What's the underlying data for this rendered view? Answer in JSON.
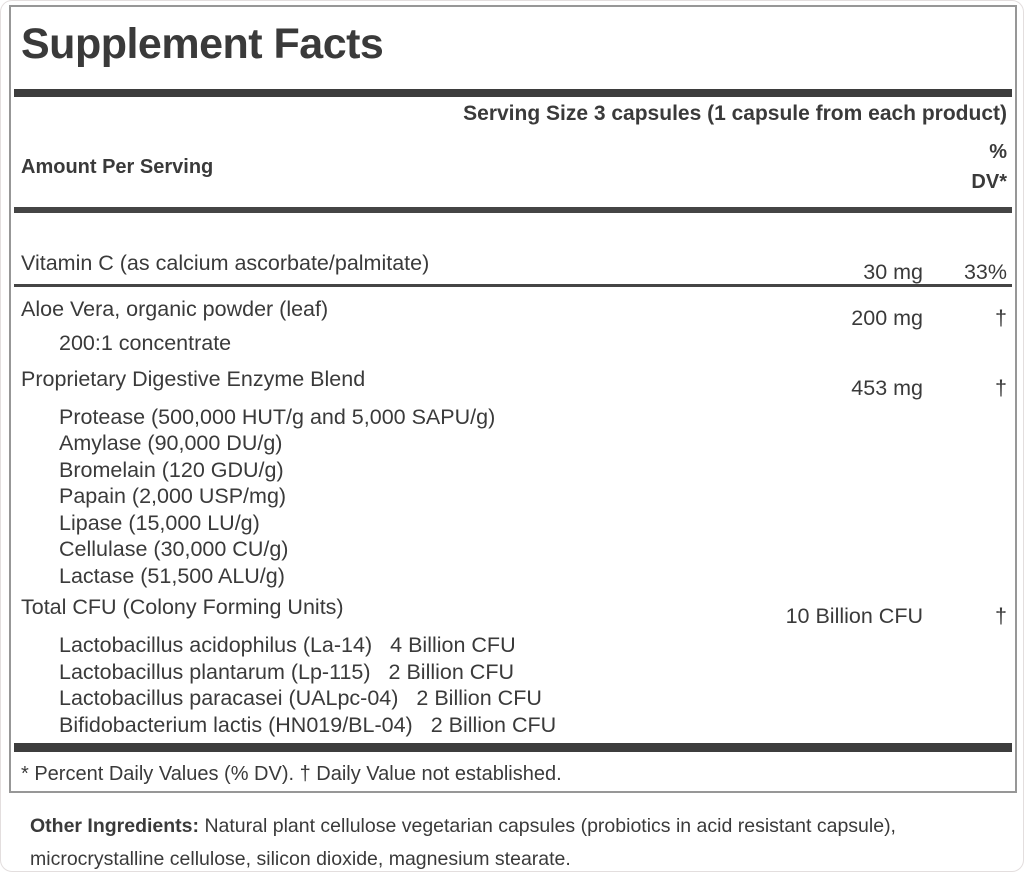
{
  "colors": {
    "text": "#3a3a3a",
    "bar": "#3d3d3d",
    "rule": "#454545",
    "border": "#979797"
  },
  "panel": {
    "title": "Supplement Facts",
    "serving_size": "Serving Size 3 capsules (1 capsule from each product)",
    "columns": {
      "amount_header": "Amount Per Serving",
      "dv_header_line1": "%",
      "dv_header_line2": "DV*"
    },
    "rows": [
      {
        "name": "Vitamin C (as calcium ascorbate/palmitate)",
        "amount": "30 mg",
        "dv": "33%"
      },
      {
        "name": "Aloe Vera, organic powder (leaf)",
        "amount": "200 mg",
        "dv": "†",
        "subitems": [
          "200:1 concentrate"
        ]
      },
      {
        "name": "Proprietary Digestive Enzyme Blend",
        "amount": "453 mg",
        "dv": "†",
        "subitems": [
          "Protease (500,000 HUT/g and 5,000 SAPU/g)",
          "Amylase (90,000 DU/g)",
          "Bromelain (120 GDU/g)",
          "Papain (2,000 USP/mg)",
          "Lipase (15,000 LU/g)",
          "Cellulase (30,000 CU/g)",
          "Lactase (51,500 ALU/g)"
        ]
      },
      {
        "name": "Total CFU (Colony Forming Units)",
        "amount": "10 Billion CFU",
        "dv": "†",
        "strains": [
          {
            "name": "Lactobacillus acidophilus (La-14)",
            "cfu": "4 Billion CFU"
          },
          {
            "name": "Lactobacillus plantarum (Lp-115)",
            "cfu": "2 Billion CFU"
          },
          {
            "name": "Lactobacillus paracasei (UALpc-04)",
            "cfu": "2 Billion CFU"
          },
          {
            "name": "Bifidobacterium lactis (HN019/BL-04)",
            "cfu": "2 Billion CFU"
          }
        ]
      }
    ],
    "footnote": "* Percent Daily Values (% DV). † Daily Value not established."
  },
  "other": {
    "label": "Other Ingredients:",
    "text": "Natural plant cellulose vegetarian capsules (probiotics in acid resistant capsule), microcrystalline cellulose, silicon dioxide, magnesium stearate."
  }
}
